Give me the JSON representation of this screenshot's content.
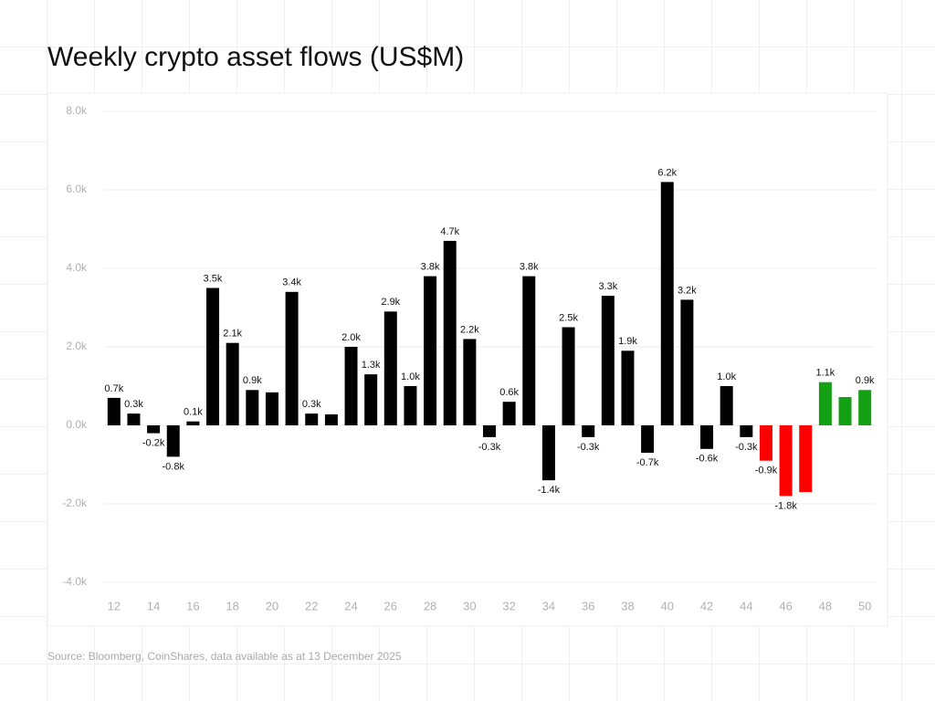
{
  "chart_data": {
    "type": "bar",
    "title": "Weekly crypto asset flows (US$M)",
    "source": "Source: Bloomberg, CoinShares, data available as at 13 December 2025",
    "categories": [
      "12",
      null,
      "14",
      null,
      "16",
      null,
      "18",
      null,
      "20",
      null,
      "22",
      null,
      "24",
      null,
      "26",
      null,
      "28",
      null,
      "30",
      null,
      "32",
      null,
      "34",
      null,
      "36",
      null,
      "38",
      null,
      "40",
      null,
      "42",
      null,
      "44",
      null,
      "46",
      null,
      "48",
      null,
      "50"
    ],
    "values": [
      700,
      300,
      -200,
      -800,
      100,
      3500,
      2100,
      900,
      840,
      3400,
      300,
      280,
      2000,
      1300,
      2900,
      1000,
      3800,
      4700,
      2200,
      -300,
      600,
      3800,
      -1400,
      2500,
      -300,
      3300,
      1900,
      -700,
      6200,
      3200,
      -600,
      1000,
      -300,
      -900,
      -1800,
      -1700,
      1100,
      720,
      900
    ],
    "value_labels": [
      "0.7k",
      "0.3k",
      "-0.2k",
      "-0.8k",
      "0.1k",
      "3.5k",
      "2.1k",
      "0.9k",
      null,
      "3.4k",
      "0.3k",
      null,
      "2.0k",
      "1.3k",
      "2.9k",
      "1.0k",
      "3.8k",
      "4.7k",
      "2.2k",
      "-0.3k",
      "0.6k",
      "3.8k",
      "-1.4k",
      "2.5k",
      "-0.3k",
      "3.3k",
      "1.9k",
      "-0.7k",
      "6.2k",
      "3.2k",
      "-0.6k",
      "1.0k",
      "-0.3k",
      "-0.9k",
      "-1.8k",
      null,
      "1.1k",
      null,
      "0.9k"
    ],
    "colors": [
      "#000000",
      "#000000",
      "#000000",
      "#000000",
      "#000000",
      "#000000",
      "#000000",
      "#000000",
      "#000000",
      "#000000",
      "#000000",
      "#000000",
      "#000000",
      "#000000",
      "#000000",
      "#000000",
      "#000000",
      "#000000",
      "#000000",
      "#000000",
      "#000000",
      "#000000",
      "#000000",
      "#000000",
      "#000000",
      "#000000",
      "#000000",
      "#000000",
      "#000000",
      "#000000",
      "#000000",
      "#000000",
      "#000000",
      "#ff0000",
      "#ff0000",
      "#ff0000",
      "#14a014",
      "#14a014",
      "#14a014"
    ],
    "ylim": [
      -4000,
      8000
    ],
    "yticks": [
      {
        "value": -4000,
        "label": "-4.0k"
      },
      {
        "value": -2000,
        "label": "-2.0k"
      },
      {
        "value": 0,
        "label": "0.0k"
      },
      {
        "value": 2000,
        "label": "2.0k"
      },
      {
        "value": 4000,
        "label": "4.0k"
      },
      {
        "value": 6000,
        "label": "6.0k"
      },
      {
        "value": 8000,
        "label": "8.0k"
      }
    ],
    "grid": true
  }
}
